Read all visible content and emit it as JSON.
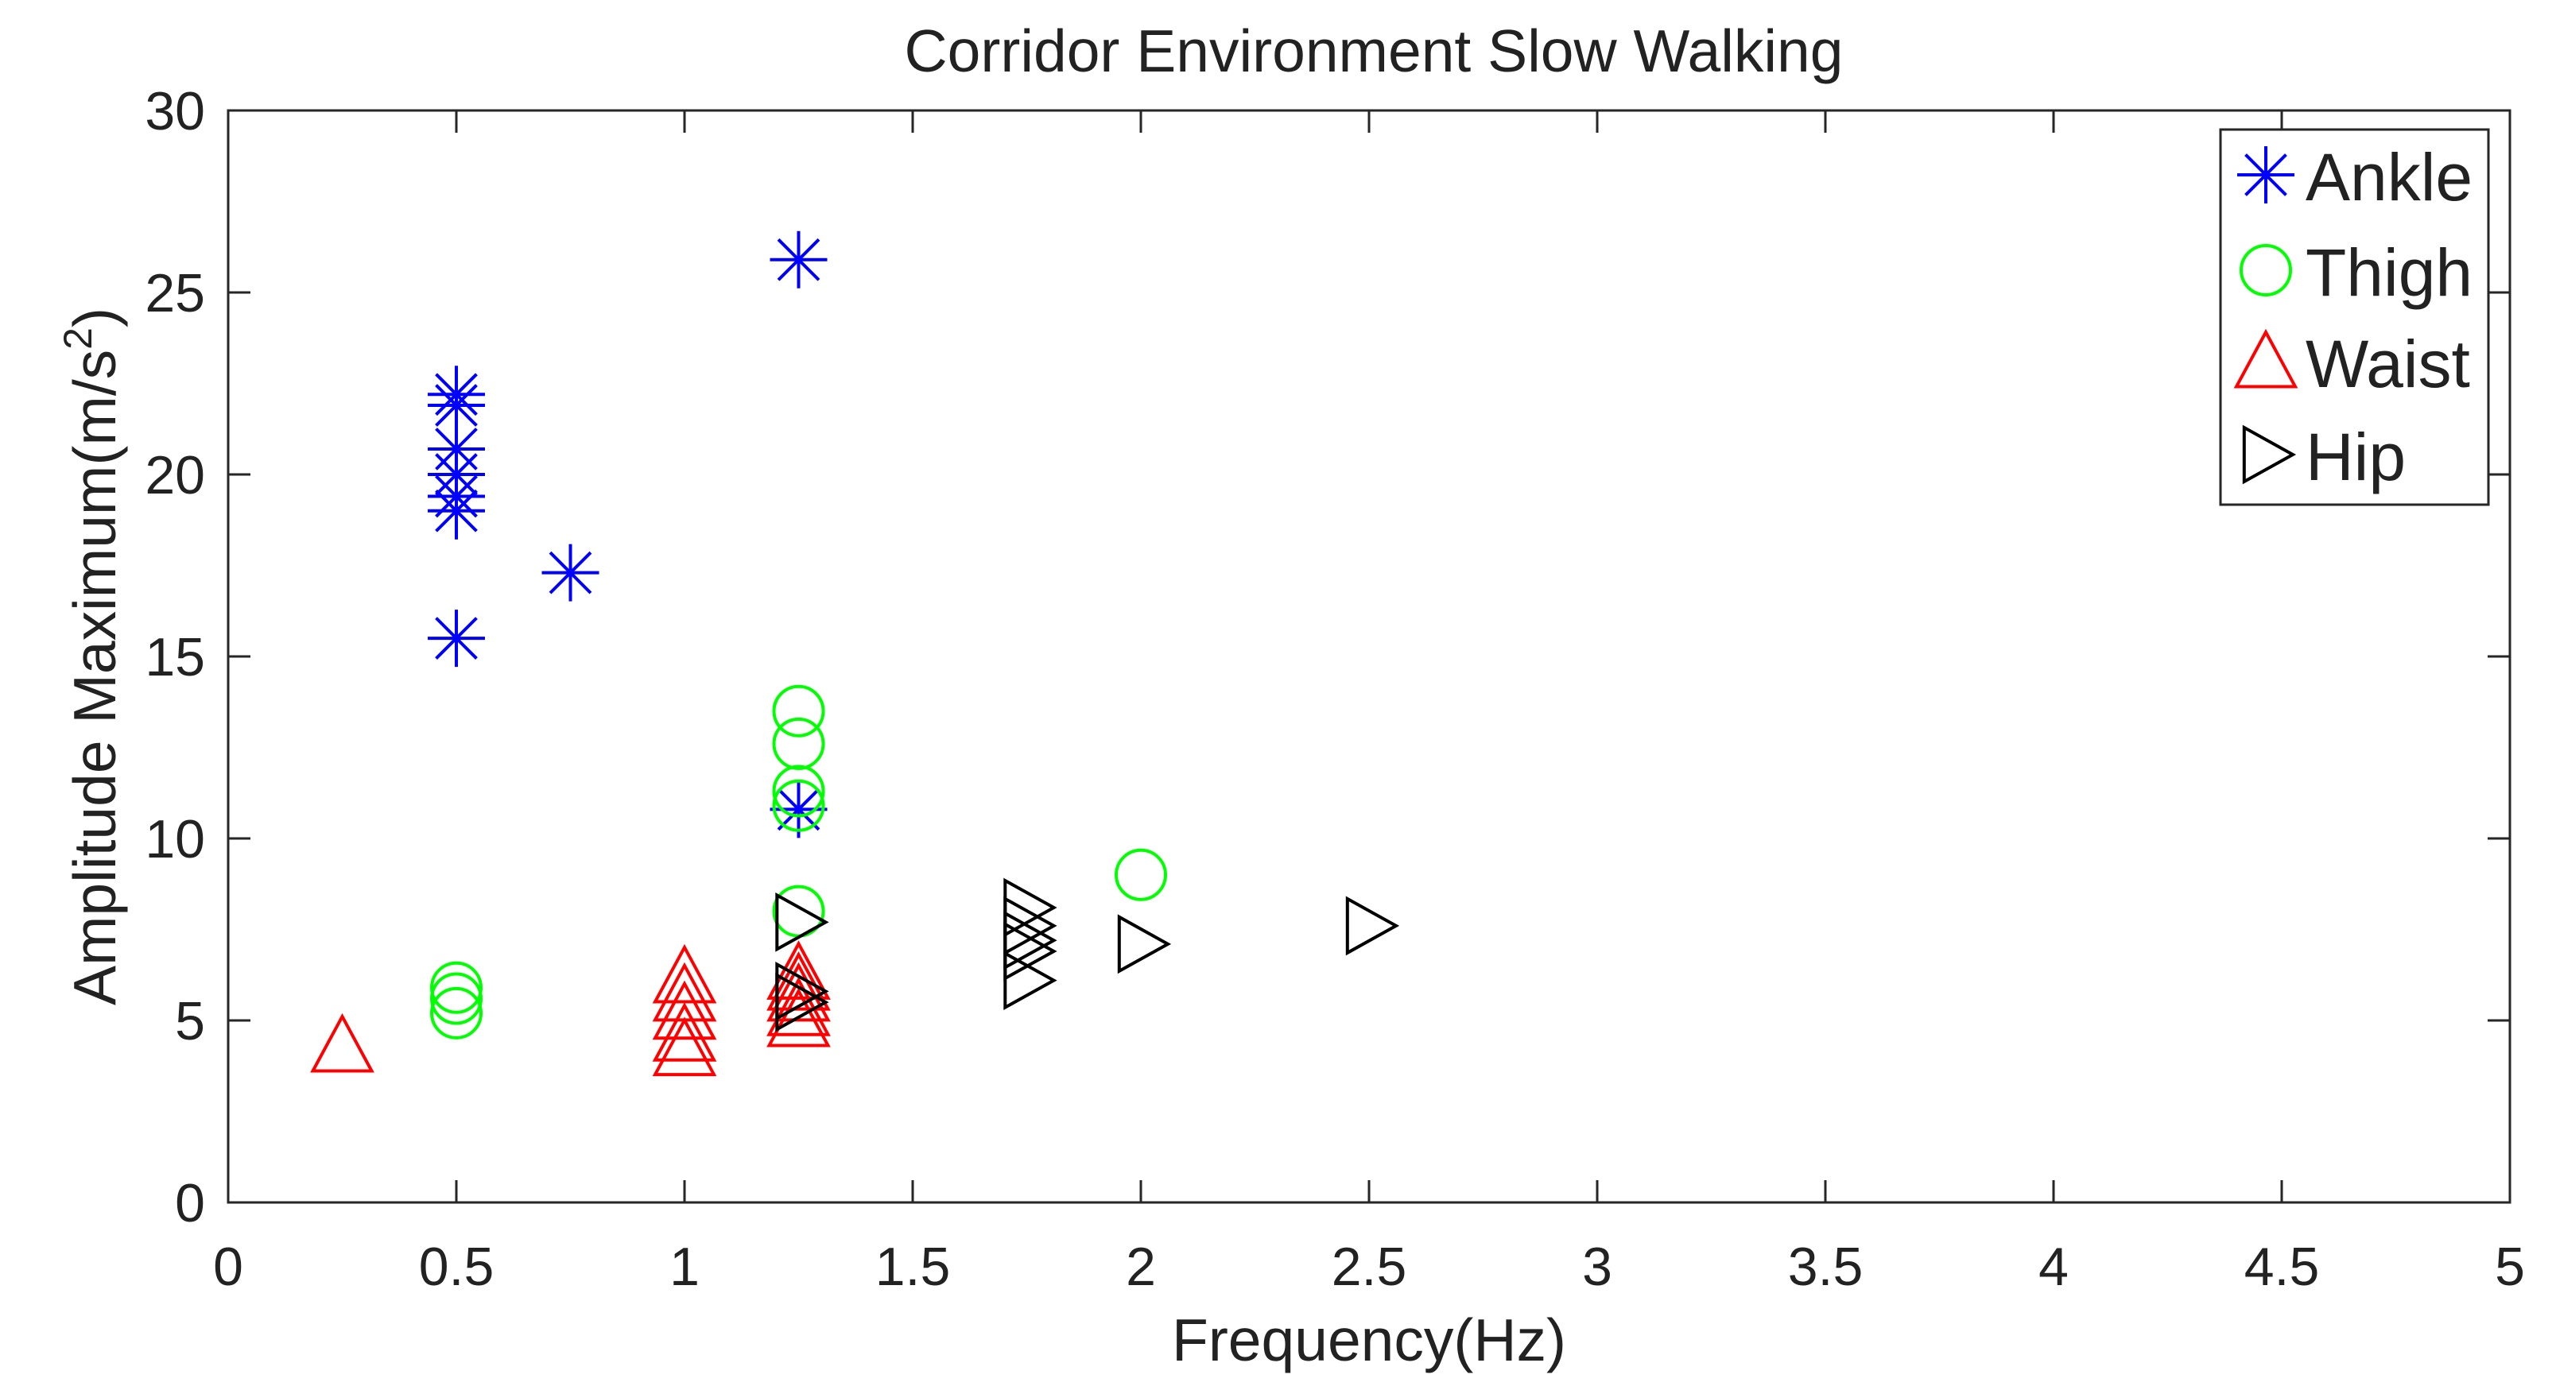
{
  "chart_data": {
    "type": "scatter",
    "title": "Corridor Environment Slow Walking",
    "xlabel": "Frequency(Hz)",
    "ylabel": "Amplitude Maximum(m/s",
    "ylabel_sup": "2",
    "ylabel_close": ")",
    "xlim": [
      0,
      5
    ],
    "ylim": [
      0,
      30
    ],
    "x_ticks": [
      "0",
      "0.5",
      "1",
      "1.5",
      "2",
      "2.5",
      "3",
      "3.5",
      "4",
      "4.5",
      "5"
    ],
    "y_ticks": [
      "0",
      "5",
      "10",
      "15",
      "20",
      "25",
      "30"
    ],
    "grid": false,
    "legend_position": "top-right",
    "series": [
      {
        "name": "Ankle",
        "marker": "asterisk",
        "color": "#0000ff",
        "points": [
          [
            0.5,
            22.2
          ],
          [
            0.5,
            21.9
          ],
          [
            0.5,
            20.7
          ],
          [
            0.5,
            20.0
          ],
          [
            0.5,
            19.4
          ],
          [
            0.5,
            19.0
          ],
          [
            0.5,
            15.5
          ],
          [
            0.75,
            17.3
          ],
          [
            1.25,
            25.9
          ],
          [
            1.25,
            10.8
          ]
        ]
      },
      {
        "name": "Thigh",
        "marker": "circle",
        "color": "#00ff00",
        "points": [
          [
            0.5,
            5.9
          ],
          [
            0.5,
            5.6
          ],
          [
            0.5,
            5.2
          ],
          [
            1.25,
            13.5
          ],
          [
            1.25,
            12.6
          ],
          [
            1.25,
            11.3
          ],
          [
            1.25,
            10.9
          ],
          [
            1.25,
            8.0
          ],
          [
            2.0,
            9.0
          ]
        ]
      },
      {
        "name": "Waist",
        "marker": "triangle-up",
        "color": "#ff0000",
        "points": [
          [
            0.25,
            4.3
          ],
          [
            1.0,
            6.2
          ],
          [
            1.0,
            5.7
          ],
          [
            1.0,
            5.2
          ],
          [
            1.0,
            4.6
          ],
          [
            1.0,
            4.2
          ],
          [
            1.25,
            6.3
          ],
          [
            1.25,
            6.0
          ],
          [
            1.25,
            5.7
          ],
          [
            1.25,
            5.3
          ],
          [
            1.25,
            5.0
          ]
        ]
      },
      {
        "name": "Hip",
        "marker": "triangle-right",
        "color": "#000000",
        "points": [
          [
            1.25,
            7.7
          ],
          [
            1.25,
            5.8
          ],
          [
            1.25,
            5.5
          ],
          [
            1.75,
            8.1
          ],
          [
            1.75,
            7.6
          ],
          [
            1.75,
            7.2
          ],
          [
            1.75,
            6.9
          ],
          [
            1.75,
            6.1
          ],
          [
            2.0,
            7.1
          ],
          [
            2.5,
            7.6
          ]
        ]
      }
    ]
  }
}
